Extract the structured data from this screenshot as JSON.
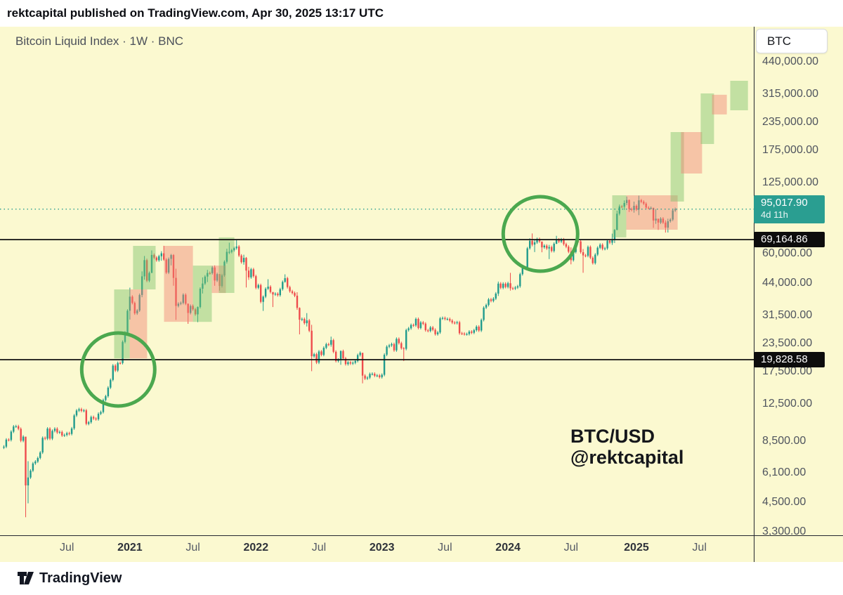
{
  "header": {
    "title": "rektcapital published on TradingView.com, Apr 30, 2025 13:17 UTC"
  },
  "chart": {
    "legend": "Bitcoin Liquid Index · 1W · BNC",
    "symbol_box": "BTC",
    "watermark": {
      "line1": "BTC/USD",
      "line2": "@rektcapital"
    }
  },
  "footer": {
    "brand": "TradingView"
  },
  "colors": {
    "background": "#fbf9d0",
    "candle_up": "#209b8d",
    "candle_down": "#ee4b4c",
    "box_green": "#7cc26a",
    "box_red": "#f08273",
    "circle_green": "#4ba84f",
    "line_black": "#111111",
    "current_line": "#2a9e91",
    "badge_teal_bg": "#2a9e91",
    "badge_black_bg": "#0d0d0d",
    "axis_line": "#23272f"
  },
  "chart_data": {
    "type": "candlestick",
    "symbol": "Bitcoin Liquid Index",
    "interval": "1W",
    "exchange": "BNC",
    "scale": "log",
    "title": "BTC/USD weekly with cycle phase boxes and projection",
    "y_axis_labels": [
      {
        "price": 440000,
        "label": "440,000.00"
      },
      {
        "price": 315000,
        "label": "315,000.00"
      },
      {
        "price": 235000,
        "label": "235,000.00"
      },
      {
        "price": 175000,
        "label": "175,000.00"
      },
      {
        "price": 125000,
        "label": "125,000.00"
      },
      {
        "price": 60000,
        "label": "60,000.00"
      },
      {
        "price": 44000,
        "label": "44,000.00"
      },
      {
        "price": 31500,
        "label": "31,500.00"
      },
      {
        "price": 23500,
        "label": "23,500.00"
      },
      {
        "price": 17500,
        "label": "17,500.00"
      },
      {
        "price": 12500,
        "label": "12,500.00"
      },
      {
        "price": 8500,
        "label": "8,500.00"
      },
      {
        "price": 6100,
        "label": "6,100.00"
      },
      {
        "price": 4500,
        "label": "4,500.00"
      },
      {
        "price": 3300,
        "label": "3,300.00"
      }
    ],
    "x_axis_labels": [
      {
        "week": 26,
        "label": "Jul",
        "bold": false
      },
      {
        "week": 52,
        "label": "2021",
        "bold": true
      },
      {
        "week": 78,
        "label": "Jul",
        "bold": false
      },
      {
        "week": 104,
        "label": "2022",
        "bold": true
      },
      {
        "week": 130,
        "label": "Jul",
        "bold": false
      },
      {
        "week": 156,
        "label": "2023",
        "bold": true
      },
      {
        "week": 182,
        "label": "Jul",
        "bold": false
      },
      {
        "week": 208,
        "label": "2024",
        "bold": true
      },
      {
        "week": 234,
        "label": "Jul",
        "bold": false
      },
      {
        "week": 261,
        "label": "2025",
        "bold": true
      },
      {
        "week": 287,
        "label": "Jul",
        "bold": false
      }
    ],
    "price_lines": [
      {
        "price": 69164.86,
        "label": "69,164.86"
      },
      {
        "price": 19828.58,
        "label": "19,828.58"
      }
    ],
    "current_price": {
      "price": 95017.9,
      "label": "95,017.90",
      "countdown": "4d 11h"
    },
    "annotations": {
      "circles": [
        {
          "week": 47.2,
          "price": 17910,
          "r": 52
        },
        {
          "week": 221.4,
          "price": 73400,
          "r": 53
        }
      ],
      "boxes": [
        {
          "w0": 45.5,
          "w1": 51.9,
          "p0": 20100,
          "p1": 41200,
          "color": "green"
        },
        {
          "w0": 51.9,
          "w1": 59.1,
          "p0": 20100,
          "p1": 41200,
          "color": "red"
        },
        {
          "w0": 53.3,
          "w1": 62.6,
          "p0": 41200,
          "p1": 64800,
          "color": "green"
        },
        {
          "w0": 66.1,
          "w1": 78.0,
          "p0": 29400,
          "p1": 64800,
          "color": "red"
        },
        {
          "w0": 78.0,
          "w1": 85.8,
          "p0": 29400,
          "p1": 52800,
          "color": "green"
        },
        {
          "w0": 85.8,
          "w1": 91.6,
          "p0": 39700,
          "p1": 52800,
          "color": "red"
        },
        {
          "w0": 88.7,
          "w1": 95.1,
          "p0": 39700,
          "p1": 70800,
          "color": "green"
        },
        {
          "w0": 251.0,
          "w1": 256.8,
          "p0": 70800,
          "p1": 109700,
          "color": "green"
        },
        {
          "w0": 256.8,
          "w1": 278.0,
          "p0": 76700,
          "p1": 109700,
          "color": "red"
        },
        {
          "w0": 275.1,
          "w1": 280.6,
          "p0": 102800,
          "p1": 211800,
          "color": "green"
        },
        {
          "w0": 279.4,
          "w1": 288.1,
          "p0": 137600,
          "p1": 211800,
          "color": "red"
        },
        {
          "w0": 287.5,
          "w1": 293.0,
          "p0": 187100,
          "p1": 316700,
          "color": "green"
        },
        {
          "w0": 292.2,
          "w1": 298.3,
          "p0": 254400,
          "p1": 312200,
          "color": "red"
        },
        {
          "w0": 299.7,
          "w1": 307.0,
          "p0": 265700,
          "p1": 361300,
          "color": "green"
        }
      ]
    },
    "weeks": [
      [
        8020
      ],
      [
        8630
      ],
      [
        8600
      ],
      [
        9380
      ],
      [
        9900
      ],
      [
        9920
      ],
      [
        9660
      ],
      [
        8530
      ],
      [
        8900
      ],
      [
        5360,
        8180,
        3850
      ],
      [
        5820,
        6900,
        4450
      ],
      [
        6250
      ],
      [
        6740
      ],
      [
        6870
      ],
      [
        7130
      ],
      [
        7550
      ],
      [
        8790
      ],
      [
        8720
      ],
      [
        9680
      ],
      [
        8720
      ],
      [
        9450
      ],
      [
        9670
      ],
      [
        9300
      ],
      [
        9350
      ],
      [
        9010
      ],
      [
        9060
      ],
      [
        9230
      ],
      [
        9160
      ],
      [
        9700
      ],
      [
        11100
      ],
      [
        11680
      ],
      [
        11850
      ],
      [
        11650
      ],
      [
        11710
      ],
      [
        10170
      ],
      [
        10340
      ],
      [
        10920
      ],
      [
        10750
      ],
      [
        10670
      ],
      [
        11300
      ],
      [
        11500
      ],
      [
        13030
      ],
      [
        13560
      ],
      [
        14830
      ],
      [
        16070
      ],
      [
        18660
      ],
      [
        17720
      ],
      [
        19170
      ],
      [
        19160
      ],
      [
        23870
      ],
      [
        26300
      ],
      [
        33000
      ],
      [
        38200,
        41950,
        30100
      ],
      [
        35800
      ],
      [
        32100
      ],
      [
        33100
      ],
      [
        38900
      ],
      [
        47200,
        49700,
        38000
      ],
      [
        55900,
        58350,
        45570
      ],
      [
        45140
      ],
      [
        48900
      ],
      [
        59000,
        61800,
        49300
      ],
      [
        57400
      ],
      [
        55800
      ],
      [
        58200
      ],
      [
        60000,
        61300,
        55500
      ],
      [
        56200,
        64850,
        55500
      ],
      [
        49100
      ],
      [
        56600
      ],
      [
        58900,
        59600,
        52900
      ],
      [
        46450,
        59500,
        42800
      ],
      [
        34700,
        51100,
        30000
      ],
      [
        35500
      ],
      [
        35800
      ],
      [
        39000
      ],
      [
        35500
      ],
      [
        32250,
        35600,
        28800
      ],
      [
        34700
      ],
      [
        33500
      ],
      [
        31800
      ],
      [
        34300,
        34500,
        29300
      ],
      [
        41500
      ],
      [
        43800,
        46700,
        39500
      ],
      [
        47100
      ],
      [
        48900,
        50500,
        44500
      ],
      [
        48800
      ],
      [
        51800
      ],
      [
        45200,
        52900,
        42800
      ],
      [
        48300
      ],
      [
        42700,
        48350,
        40700
      ],
      [
        47700
      ],
      [
        54950
      ],
      [
        60900,
        62900,
        53900
      ],
      [
        60900,
        66990,
        59500
      ],
      [
        61900
      ],
      [
        63300
      ],
      [
        64400,
        69000,
        62300
      ],
      [
        58600
      ],
      [
        54700
      ],
      [
        57200,
        59100,
        53300
      ],
      [
        50100,
        57700,
        42050
      ],
      [
        46700,
        52100,
        45500
      ],
      [
        50800
      ],
      [
        47300
      ],
      [
        41900
      ],
      [
        43100
      ],
      [
        36200
      ],
      [
        38200,
        38700,
        32950
      ],
      [
        41500
      ],
      [
        42400,
        45800,
        41000
      ],
      [
        40100
      ],
      [
        39100,
        39800,
        34300
      ],
      [
        39400
      ],
      [
        38800
      ],
      [
        41300
      ],
      [
        44540
      ],
      [
        46300,
        48200,
        44200
      ],
      [
        42200
      ],
      [
        40400
      ],
      [
        39700
      ],
      [
        38600
      ],
      [
        34000,
        40000,
        33300
      ],
      [
        30080,
        34200,
        25800
      ],
      [
        30300
      ],
      [
        29000
      ],
      [
        29850,
        32200,
        28000
      ],
      [
        26800
      ],
      [
        20550,
        28500,
        17600
      ],
      [
        21000
      ],
      [
        19250
      ],
      [
        21600
      ],
      [
        20850
      ],
      [
        22450
      ],
      [
        23300
      ],
      [
        23180
      ],
      [
        24300,
        25200,
        22700
      ],
      [
        21530
      ],
      [
        19550
      ],
      [
        19830
      ],
      [
        21700,
        21850,
        18800
      ],
      [
        20100
      ],
      [
        18940
      ],
      [
        19300
      ],
      [
        19060
      ],
      [
        19200
      ],
      [
        19570
      ],
      [
        20810
      ],
      [
        21300
      ],
      [
        16800,
        21000,
        15500
      ],
      [
        16290
      ],
      [
        16460
      ],
      [
        17100
      ],
      [
        17130
      ],
      [
        16780
      ],
      [
        16840
      ],
      [
        16540
      ],
      [
        16950
      ],
      [
        20880
      ],
      [
        22700
      ],
      [
        23020
      ],
      [
        23330
      ],
      [
        21860
      ],
      [
        24630
      ],
      [
        23560
      ],
      [
        22350
      ],
      [
        22200,
        22600,
        19550
      ],
      [
        26980
      ],
      [
        27470
      ],
      [
        28460
      ],
      [
        28330
      ],
      [
        30310
      ],
      [
        27590
      ],
      [
        29230
      ],
      [
        28850
      ],
      [
        26930
      ],
      [
        26750
      ],
      [
        27750
      ],
      [
        27070
      ],
      [
        25850
      ],
      [
        26340
      ],
      [
        30480
      ],
      [
        30620
      ],
      [
        30290
      ],
      [
        30290
      ],
      [
        29790
      ],
      [
        29180
      ],
      [
        29040
      ],
      [
        29280
      ],
      [
        26100
      ],
      [
        26010
      ],
      [
        25870
      ],
      [
        25900
      ],
      [
        26570
      ],
      [
        26250
      ],
      [
        26960
      ],
      [
        27970
      ],
      [
        26860
      ],
      [
        29990
      ],
      [
        34090
      ],
      [
        35050
      ],
      [
        37130
      ],
      [
        36570
      ],
      [
        37450
      ],
      [
        39470
      ],
      [
        43790,
        44700,
        38500
      ],
      [
        41920
      ],
      [
        43720
      ],
      [
        42280
      ],
      [
        43950
      ],
      [
        41700,
        48970,
        40700
      ],
      [
        41580
      ],
      [
        42030
      ],
      [
        42580
      ],
      [
        48290
      ],
      [
        51730
      ],
      [
        51720
      ],
      [
        63170
      ],
      [
        68330,
        70200,
        62300
      ],
      [
        65650,
        73790,
        64500
      ],
      [
        67210,
        68900,
        60770
      ],
      [
        69640
      ],
      [
        67840
      ],
      [
        63840,
        65500,
        60660
      ],
      [
        64940
      ],
      [
        63110
      ],
      [
        64030,
        65500,
        56500
      ],
      [
        61450
      ],
      [
        66270
      ],
      [
        69280,
        71970,
        66000
      ],
      [
        67760
      ],
      [
        69310
      ],
      [
        66010
      ],
      [
        64260
      ],
      [
        61000
      ],
      [
        55850,
        63800,
        53500
      ],
      [
        60800
      ],
      [
        68150
      ],
      [
        67900
      ],
      [
        60700
      ],
      [
        58700,
        62700,
        49000
      ],
      [
        58440
      ],
      [
        64090
      ],
      [
        57300
      ],
      [
        54160
      ],
      [
        59180
      ],
      [
        63580
      ],
      [
        65600
      ],
      [
        62820
      ],
      [
        63200
      ],
      [
        68370
      ],
      [
        67020
      ],
      [
        68740,
        73600,
        65500
      ],
      [
        76500,
        77200,
        66800
      ],
      [
        90590,
        93400,
        76300
      ],
      [
        97700,
        99600,
        89000
      ],
      [
        97460
      ],
      [
        101240,
        104000,
        94200
      ],
      [
        104450,
        108300,
        99000
      ],
      [
        95100,
        105000,
        92200
      ],
      [
        94300
      ],
      [
        98300,
        102700,
        91500
      ],
      [
        94560
      ],
      [
        104100,
        109350,
        89200
      ],
      [
        102600
      ],
      [
        100600
      ],
      [
        96500
      ],
      [
        96100
      ],
      [
        96250
      ],
      [
        84400,
        96500,
        78200
      ],
      [
        86000,
        95000,
        81500
      ],
      [
        82600,
        84500,
        76600
      ],
      [
        86100
      ],
      [
        82600
      ],
      [
        78400,
        84500,
        74400
      ],
      [
        83800,
        86000,
        74500
      ],
      [
        85200
      ],
      [
        93750
      ],
      [
        95017.9
      ]
    ]
  }
}
